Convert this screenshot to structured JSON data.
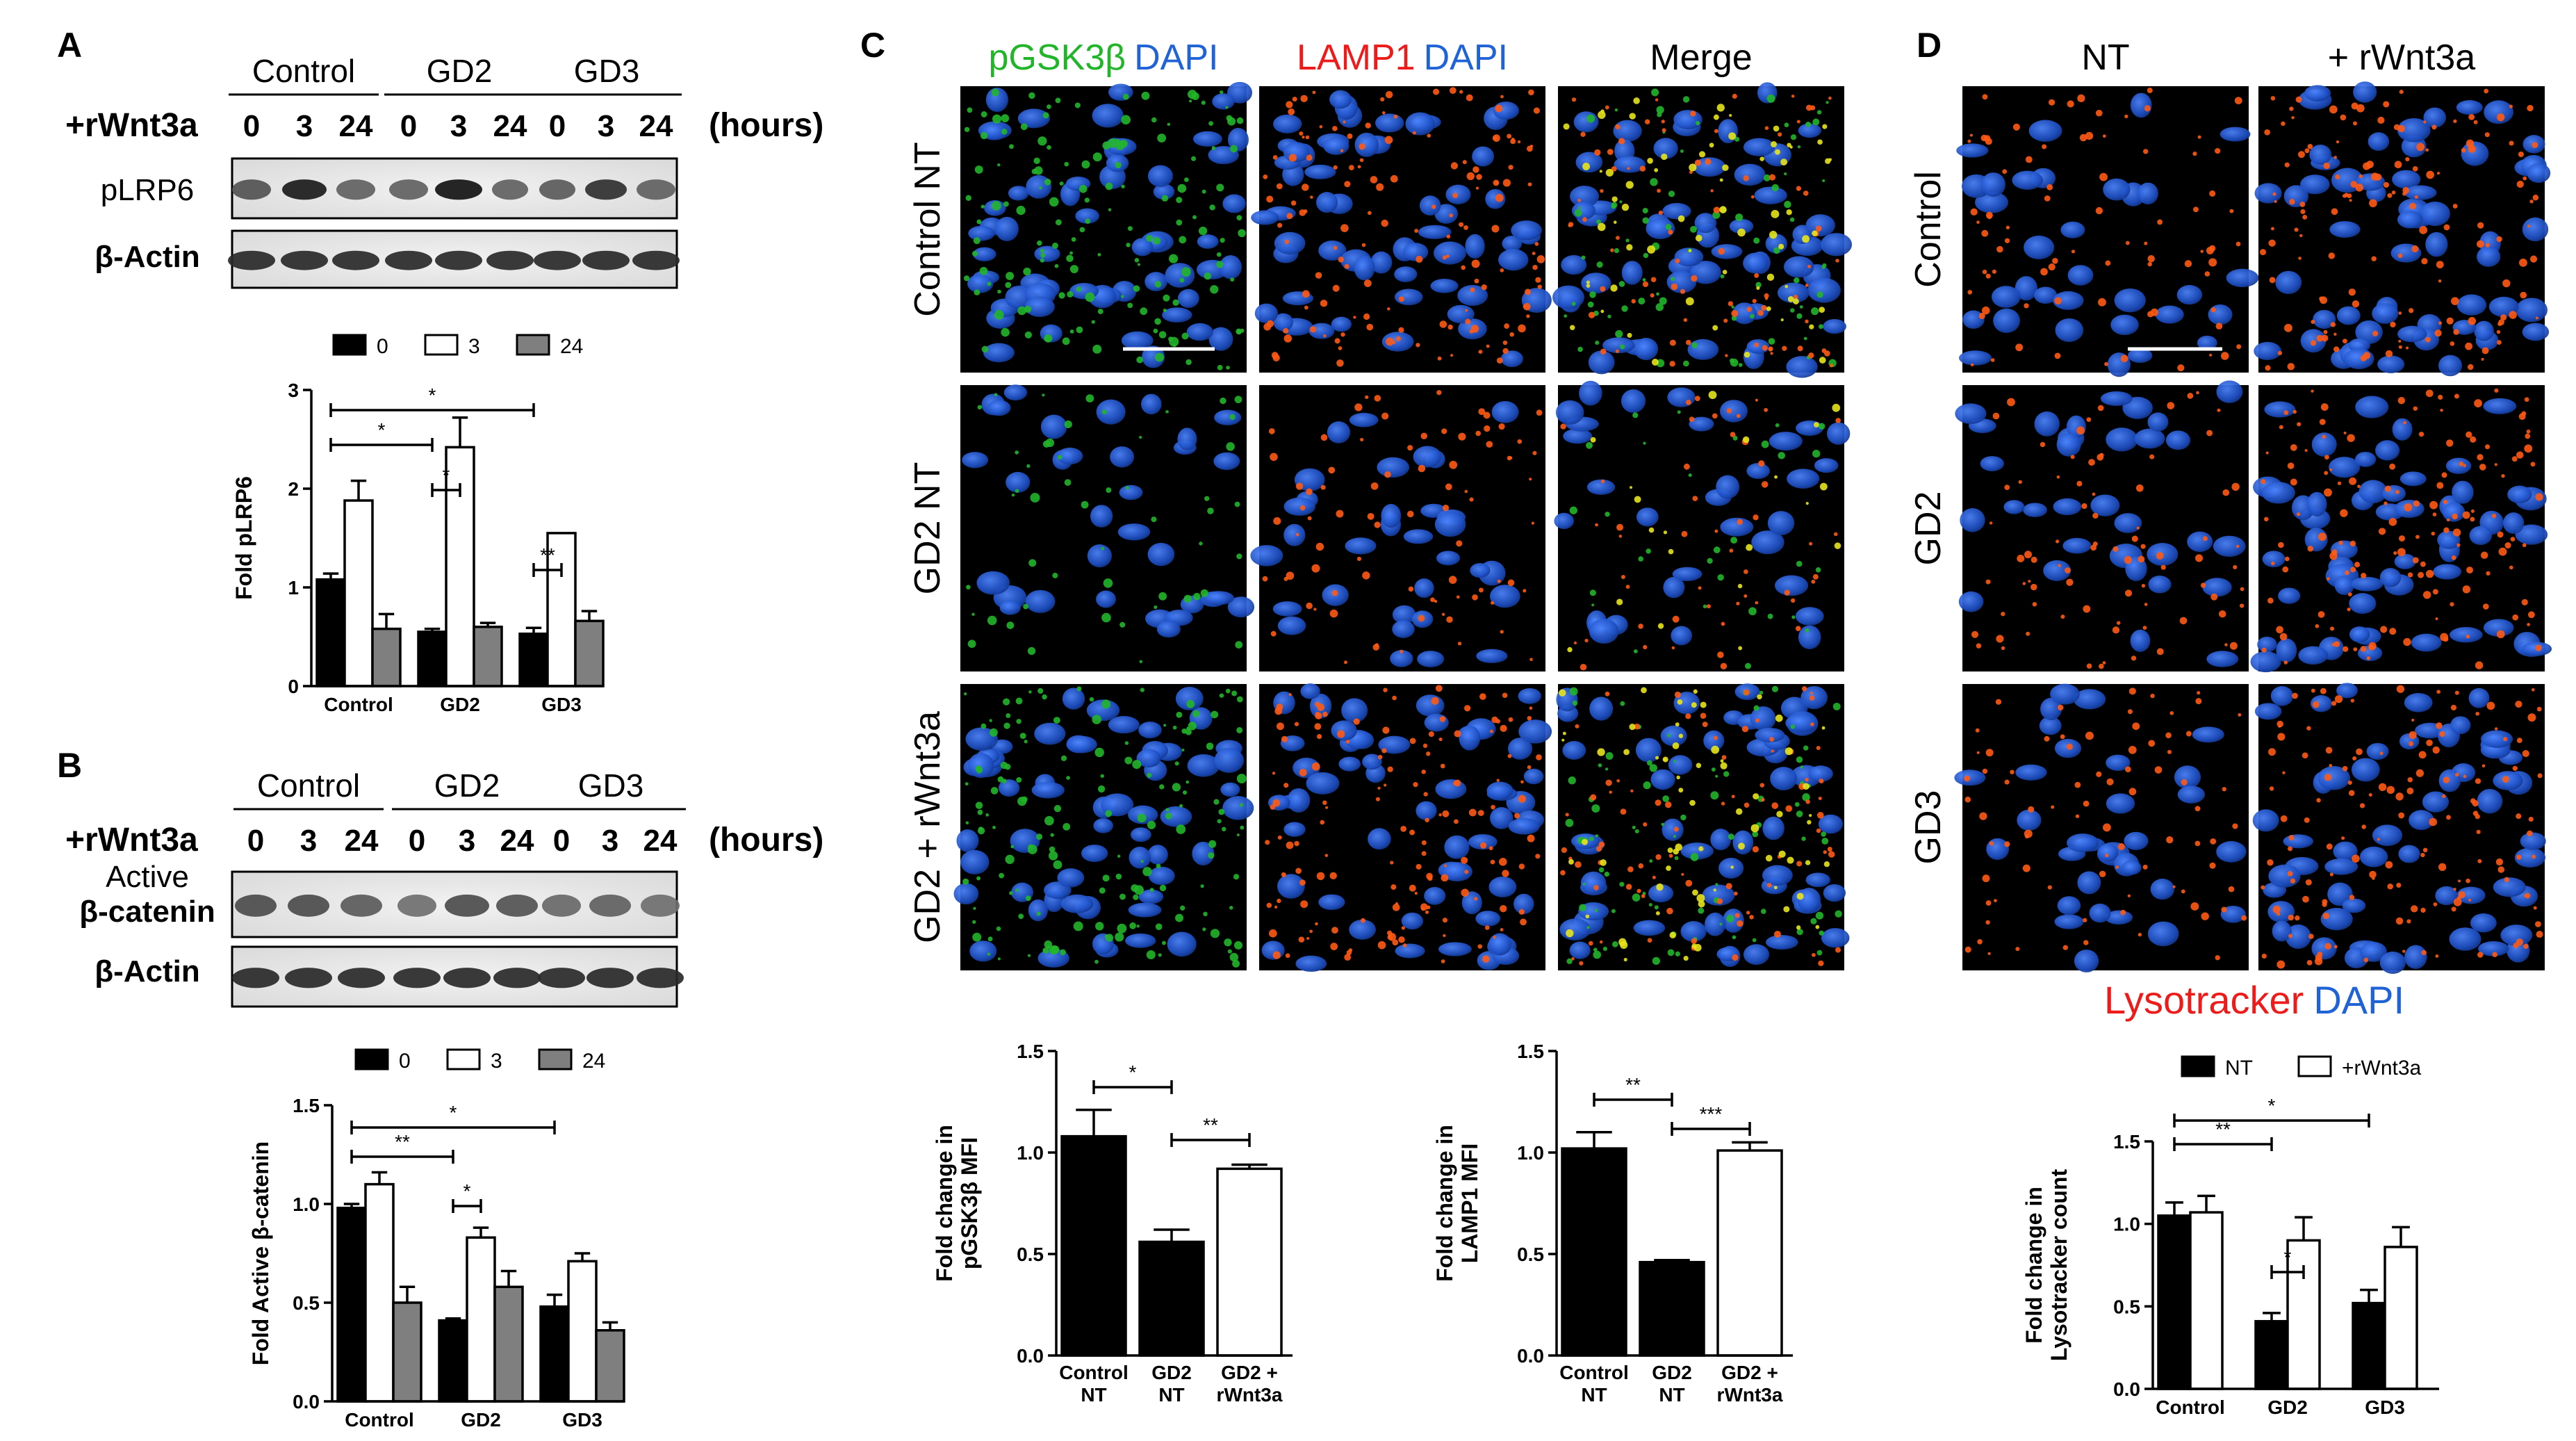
{
  "colors": {
    "green": "#22b52a",
    "blue": "#1f63d6",
    "red": "#ee1b1b",
    "orange": "#ff5a14",
    "yellow": "#e8e41a",
    "nucleus": "#1d4fc4",
    "background": "#000000",
    "gray_bar": "#7f7f7f"
  },
  "panels": {
    "A": {
      "letter": "A",
      "blot": {
        "groups": [
          "Control",
          "GD2",
          "GD3"
        ],
        "treatment": "+rWnt3a",
        "hours": [
          "0",
          "3",
          "24",
          "0",
          "3",
          "24",
          "0",
          "3",
          "24"
        ],
        "unit": "(hours)",
        "rows": [
          "pLRP6",
          "β-Actin"
        ]
      }
    },
    "B": {
      "letter": "B",
      "blot": {
        "groups": [
          "Control",
          "GD2",
          "GD3"
        ],
        "treatment": "+rWnt3a",
        "hours": [
          "0",
          "3",
          "24",
          "0",
          "3",
          "24",
          "0",
          "3",
          "24"
        ],
        "unit": "(hours)",
        "rows": [
          "Active",
          "β-catenin",
          "β-Actin"
        ]
      }
    },
    "C": {
      "letter": "C",
      "columns": [
        {
          "parts": [
            {
              "text": "pGSK3β",
              "color": "green"
            },
            {
              "text": "DAPI",
              "color": "blue"
            }
          ]
        },
        {
          "parts": [
            {
              "text": "LAMP1",
              "color": "red"
            },
            {
              "text": "DAPI",
              "color": "blue"
            }
          ]
        },
        {
          "parts": [
            {
              "text": "Merge",
              "color": "black"
            }
          ]
        }
      ],
      "rows": [
        "Control NT",
        "GD2 NT",
        "GD2 + rWnt3a"
      ]
    },
    "D": {
      "letter": "D",
      "columns": [
        "NT",
        "+ rWnt3a"
      ],
      "rows": [
        "Control",
        "GD2",
        "GD3"
      ],
      "stain": [
        {
          "text": "Lysotracker",
          "color": "red"
        },
        {
          "text": "DAPI",
          "color": "blue"
        }
      ]
    }
  },
  "chart_data": [
    {
      "id": "A",
      "type": "bar",
      "categories": [
        "Control",
        "GD2",
        "GD3"
      ],
      "series": [
        {
          "name": "0",
          "values": [
            1.08,
            0.55,
            0.53
          ],
          "errors": [
            0.06,
            0.03,
            0.06
          ]
        },
        {
          "name": "3",
          "values": [
            1.88,
            2.42,
            1.55
          ],
          "errors": [
            0.2,
            0.3,
            0.0
          ]
        },
        {
          "name": "24",
          "values": [
            0.58,
            0.6,
            0.66
          ],
          "errors": [
            0.15,
            0.04,
            0.1
          ]
        }
      ],
      "ylabel": "Fold pLRP6",
      "ylim": [
        0,
        3
      ],
      "yticks": [
        "0",
        "1",
        "2",
        "3"
      ],
      "legend": "top",
      "significance": [
        {
          "from": [
            0,
            0
          ],
          "to": [
            2,
            0
          ],
          "label": "*"
        },
        {
          "from": [
            0,
            0
          ],
          "to": [
            1,
            0
          ],
          "label": "*"
        },
        {
          "from": [
            1,
            0
          ],
          "to": [
            1,
            1
          ],
          "label": "*"
        },
        {
          "from": [
            2,
            0
          ],
          "to": [
            2,
            1
          ],
          "label": "**"
        }
      ]
    },
    {
      "id": "B",
      "type": "bar",
      "categories": [
        "Control",
        "GD2",
        "GD3"
      ],
      "series": [
        {
          "name": "0",
          "values": [
            0.98,
            0.41,
            0.48
          ],
          "errors": [
            0.02,
            0.01,
            0.06
          ]
        },
        {
          "name": "3",
          "values": [
            1.1,
            0.83,
            0.71
          ],
          "errors": [
            0.06,
            0.05,
            0.04
          ]
        },
        {
          "name": "24",
          "values": [
            0.5,
            0.58,
            0.36
          ],
          "errors": [
            0.08,
            0.08,
            0.04
          ]
        }
      ],
      "ylabel": "Fold Active β-catenin",
      "ylim": [
        0,
        1.5
      ],
      "yticks": [
        "0.0",
        "0.5",
        "1.0",
        "1.5"
      ],
      "legend": "top",
      "significance": [
        {
          "from": [
            0,
            0
          ],
          "to": [
            2,
            0
          ],
          "label": "*"
        },
        {
          "from": [
            0,
            0
          ],
          "to": [
            1,
            0
          ],
          "label": "**"
        },
        {
          "from": [
            1,
            0
          ],
          "to": [
            1,
            1
          ],
          "label": "*"
        }
      ]
    },
    {
      "id": "C1",
      "type": "bar",
      "categories": [
        "Control NT",
        "GD2 NT",
        "GD2 + rWnt3a"
      ],
      "category_lines": [
        [
          "Control",
          "NT"
        ],
        [
          "GD2",
          "NT"
        ],
        [
          "GD2 +",
          "rWnt3a"
        ]
      ],
      "series": [
        {
          "values": [
            1.08,
            0.56,
            0.92
          ],
          "errors": [
            0.13,
            0.06,
            0.02
          ],
          "fills": [
            "#000000",
            "#000000",
            "#ffffff"
          ]
        }
      ],
      "ylabel_lines": [
        "Fold change in",
        "pGSK3β MFI"
      ],
      "ylim": [
        0,
        1.5
      ],
      "yticks": [
        "0.0",
        "0.5",
        "1.0",
        "1.5"
      ],
      "significance": [
        {
          "from": [
            0,
            0
          ],
          "to": [
            1,
            0
          ],
          "label": "*"
        },
        {
          "from": [
            1,
            0
          ],
          "to": [
            2,
            0
          ],
          "label": "**"
        }
      ]
    },
    {
      "id": "C2",
      "type": "bar",
      "categories": [
        "Control NT",
        "GD2 NT",
        "GD2 + rWnt3a"
      ],
      "category_lines": [
        [
          "Control",
          "NT"
        ],
        [
          "GD2",
          "NT"
        ],
        [
          "GD2 +",
          "rWnt3a"
        ]
      ],
      "series": [
        {
          "values": [
            1.02,
            0.46,
            1.01
          ],
          "errors": [
            0.08,
            0.01,
            0.04
          ],
          "fills": [
            "#000000",
            "#000000",
            "#ffffff"
          ]
        }
      ],
      "ylabel_lines": [
        "Fold change in",
        "LAMP1 MFI"
      ],
      "ylim": [
        0,
        1.5
      ],
      "yticks": [
        "0.0",
        "0.5",
        "1.0",
        "1.5"
      ],
      "significance": [
        {
          "from": [
            0,
            0
          ],
          "to": [
            1,
            0
          ],
          "label": "**"
        },
        {
          "from": [
            1,
            0
          ],
          "to": [
            2,
            0
          ],
          "label": "***"
        }
      ]
    },
    {
      "id": "D",
      "type": "bar",
      "categories": [
        "Control",
        "GD2",
        "GD3"
      ],
      "series": [
        {
          "name": "NT",
          "values": [
            1.05,
            0.41,
            0.52
          ],
          "errors": [
            0.08,
            0.05,
            0.08
          ]
        },
        {
          "name": "+rWnt3a",
          "values": [
            1.07,
            0.9,
            0.86
          ],
          "errors": [
            0.1,
            0.14,
            0.12
          ]
        }
      ],
      "ylabel_lines": [
        "Fold change in",
        "Lysotracker count"
      ],
      "ylim": [
        0,
        1.5
      ],
      "yticks": [
        "0.0",
        "0.5",
        "1.0",
        "1.5"
      ],
      "legend": "top",
      "significance": [
        {
          "from": [
            0,
            0
          ],
          "to": [
            2,
            0
          ],
          "label": "*"
        },
        {
          "from": [
            0,
            0
          ],
          "to": [
            1,
            0
          ],
          "label": "**"
        },
        {
          "from": [
            1,
            0
          ],
          "to": [
            1,
            1
          ],
          "label": "*"
        }
      ]
    }
  ]
}
